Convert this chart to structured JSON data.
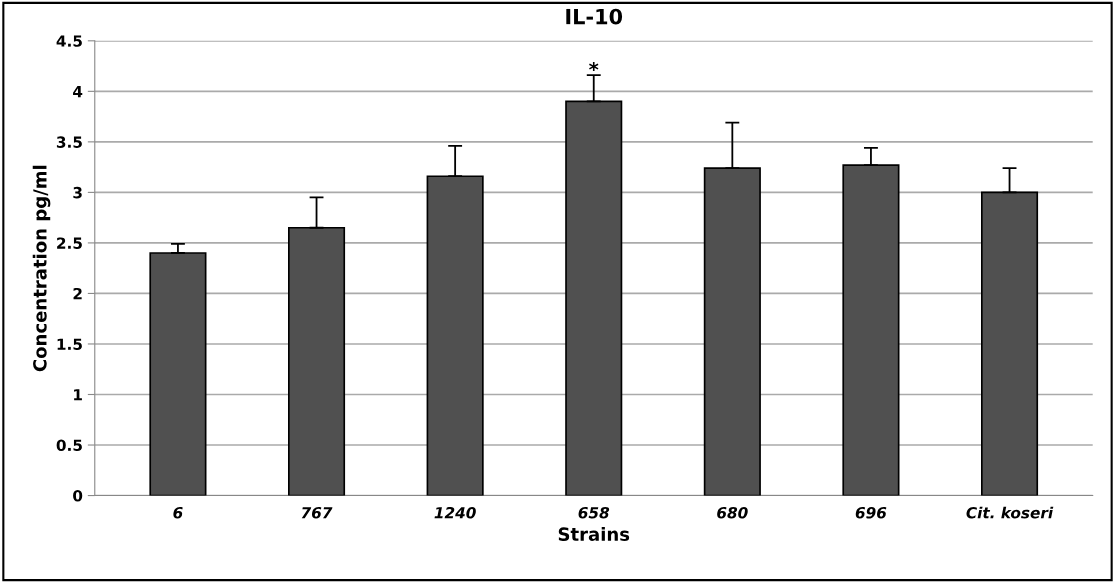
{
  "chart_data": {
    "type": "bar",
    "title": "IL-10",
    "xlabel": "Strains",
    "ylabel": "Concentration pg/ml",
    "categories": [
      "6",
      "767",
      "1240",
      "658",
      "680",
      "696",
      "Cit. koseri"
    ],
    "values": [
      2.4,
      2.65,
      3.16,
      3.9,
      3.24,
      3.27,
      3.0
    ],
    "errors": [
      [
        2.4,
        2.49
      ],
      [
        2.65,
        2.95
      ],
      [
        3.16,
        3.46
      ],
      [
        3.9,
        4.16
      ],
      [
        3.24,
        3.69
      ],
      [
        3.27,
        3.44
      ],
      [
        3.0,
        3.24
      ]
    ],
    "color": "#505050",
    "ylim": [
      0,
      4.5
    ],
    "yticks": [
      0,
      0.5,
      1,
      1.5,
      2,
      2.5,
      3,
      3.5,
      4,
      4.5
    ],
    "grid": "y",
    "annotations": [
      {
        "text": "*",
        "x": "658",
        "y": 4.2
      }
    ]
  }
}
